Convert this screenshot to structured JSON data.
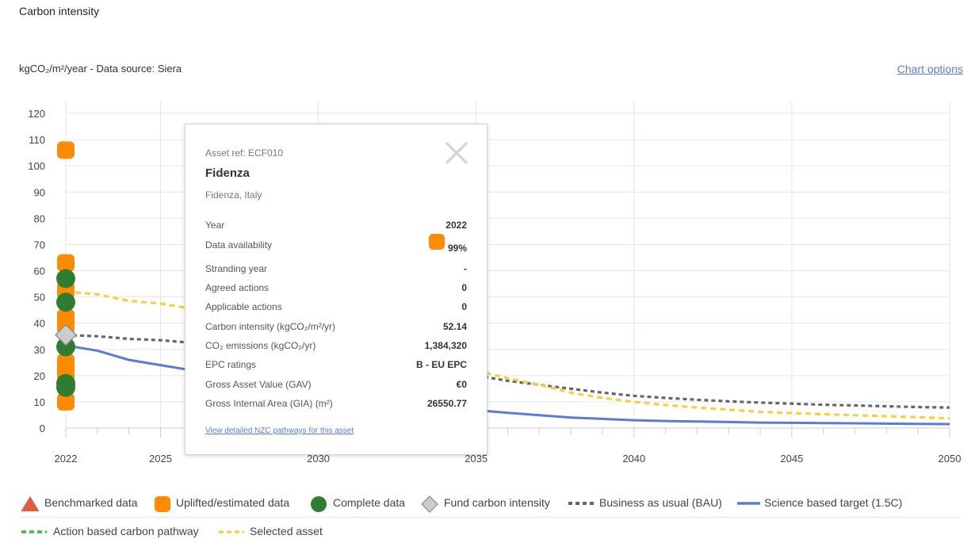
{
  "header": {
    "title": "Carbon intensity",
    "units_source": "kgCO₂/m²/year - Data source: Siera",
    "chart_options_link": "Chart options"
  },
  "chart_data": {
    "type": "line",
    "xlim": [
      2022,
      2050
    ],
    "ylim": [
      0,
      120
    ],
    "x_ticks": [
      2022,
      2025,
      2030,
      2035,
      2040,
      2045,
      2050
    ],
    "y_ticks": [
      0,
      10,
      20,
      30,
      40,
      50,
      60,
      70,
      80,
      90,
      100,
      110,
      120
    ],
    "grid": true,
    "legend_position": "bottom",
    "series": [
      {
        "name": "Business as usual (BAU)",
        "style": "dotted",
        "color": "#666666",
        "x": [
          2022,
          2023,
          2024,
          2025,
          2026,
          2027,
          2028,
          2029,
          2030,
          2031,
          2032,
          2033,
          2034,
          2035,
          2036,
          2037,
          2038,
          2039,
          2040,
          2041,
          2042,
          2043,
          2044,
          2045,
          2046,
          2047,
          2048,
          2049,
          2050
        ],
        "y": [
          35.5,
          35.0,
          34.0,
          33.5,
          32.5,
          31.5,
          30.5,
          29.0,
          27.5,
          26.0,
          24.5,
          23.0,
          21.5,
          20.0,
          18.0,
          16.5,
          15.0,
          13.5,
          12.3,
          11.5,
          10.8,
          10.2,
          9.7,
          9.3,
          8.9,
          8.6,
          8.3,
          8.0,
          7.8
        ]
      },
      {
        "name": "Science based target (1.5C)",
        "style": "solid",
        "color": "#5b7bd5",
        "x": [
          2022,
          2023,
          2024,
          2025,
          2026,
          2027,
          2028,
          2029,
          2030,
          2031,
          2032,
          2033,
          2034,
          2035,
          2036,
          2037,
          2038,
          2039,
          2040,
          2041,
          2042,
          2043,
          2044,
          2045,
          2046,
          2047,
          2048,
          2049,
          2050
        ],
        "y": [
          31.5,
          29.5,
          26.0,
          24.0,
          22.0,
          19.5,
          17.0,
          15.0,
          13.0,
          11.5,
          10.0,
          8.8,
          7.8,
          6.8,
          5.8,
          4.9,
          4.0,
          3.5,
          3.0,
          2.7,
          2.5,
          2.3,
          2.1,
          2.0,
          1.9,
          1.8,
          1.7,
          1.6,
          1.5
        ]
      },
      {
        "name": "Selected asset",
        "style": "dashed",
        "color": "#f5d142",
        "x": [
          2022,
          2023,
          2024,
          2025,
          2026,
          2027,
          2028,
          2029,
          2030,
          2031,
          2032,
          2033,
          2034,
          2035,
          2036,
          2037,
          2038,
          2039,
          2040,
          2041,
          2042,
          2043,
          2044,
          2045,
          2046,
          2047,
          2048,
          2049,
          2050
        ],
        "y": [
          52.1,
          51.0,
          48.5,
          47.5,
          45.5,
          43.0,
          40.0,
          37.0,
          34.0,
          31.5,
          28.5,
          26.0,
          24.0,
          22.0,
          19.0,
          16.5,
          13.5,
          11.5,
          10.0,
          8.8,
          7.8,
          7.0,
          6.2,
          5.7,
          5.3,
          4.9,
          4.5,
          4.1,
          3.7
        ]
      },
      {
        "name": "Action based carbon pathway",
        "style": "dashed",
        "color": "#3cbc3c",
        "x": [],
        "y": []
      }
    ],
    "points": [
      {
        "kind": "uplifted",
        "x": 2022,
        "y": 106
      },
      {
        "kind": "uplifted",
        "x": 2022,
        "y": 63
      },
      {
        "kind": "uplifted",
        "x": 2022,
        "y": 52.5
      },
      {
        "kind": "uplifted",
        "x": 2022,
        "y": 42
      },
      {
        "kind": "uplifted",
        "x": 2022,
        "y": 39
      },
      {
        "kind": "uplifted",
        "x": 2022,
        "y": 25
      },
      {
        "kind": "uplifted",
        "x": 2022,
        "y": 21
      },
      {
        "kind": "uplifted",
        "x": 2022,
        "y": 10
      },
      {
        "kind": "complete",
        "x": 2022,
        "y": 57
      },
      {
        "kind": "complete",
        "x": 2022,
        "y": 48
      },
      {
        "kind": "complete",
        "x": 2022,
        "y": 31
      },
      {
        "kind": "complete",
        "x": 2022,
        "y": 17
      },
      {
        "kind": "complete",
        "x": 2022,
        "y": 15.5
      },
      {
        "kind": "fund",
        "x": 2022,
        "y": 35.5
      }
    ],
    "marker_colors": {
      "benchmarked": "#e05a3c",
      "uplifted": "#ff8c00",
      "complete": "#2e7d32",
      "fund": "#cccccc"
    }
  },
  "tooltip": {
    "asset_ref": "Asset ref: ECF010",
    "name": "Fidenza",
    "location": "Fidenza, Italy",
    "rows": [
      {
        "label": "Year",
        "value": "2022"
      },
      {
        "label": "Data availability",
        "value": "99%"
      },
      {
        "label": "Stranding year",
        "value": "-"
      },
      {
        "label": "Agreed actions",
        "value": "0"
      },
      {
        "label": "Applicable actions",
        "value": "0"
      },
      {
        "label": "Carbon intensity (kgCO₂/m²/yr)",
        "value": "52.14"
      },
      {
        "label": "CO₂ emissions (kgCO₂/yr)",
        "value": "1,384,320"
      },
      {
        "label": "EPC ratings",
        "value": "B - EU EPC"
      },
      {
        "label": "Gross Asset Value (GAV)",
        "value": "€0"
      },
      {
        "label": "Gross Internal Area (GIA) (m²)",
        "value": "26550.77"
      }
    ],
    "link": "View detailed NZC pathways for this asset",
    "close_icon": "close-icon"
  },
  "legend": [
    {
      "label": "Benchmarked data",
      "symbol": "triangle"
    },
    {
      "label": "Uplifted/estimated data",
      "symbol": "rounded-square"
    },
    {
      "label": "Complete data",
      "symbol": "circle"
    },
    {
      "label": "Fund carbon intensity",
      "symbol": "diamond"
    },
    {
      "label": "Business as usual (BAU)",
      "symbol": "dotted-line"
    },
    {
      "label": "Science based target (1.5C)",
      "symbol": "solid-line"
    },
    {
      "label": "Action based carbon pathway",
      "symbol": "dashed-line"
    },
    {
      "label": "Selected asset",
      "symbol": "dashed-line"
    }
  ]
}
